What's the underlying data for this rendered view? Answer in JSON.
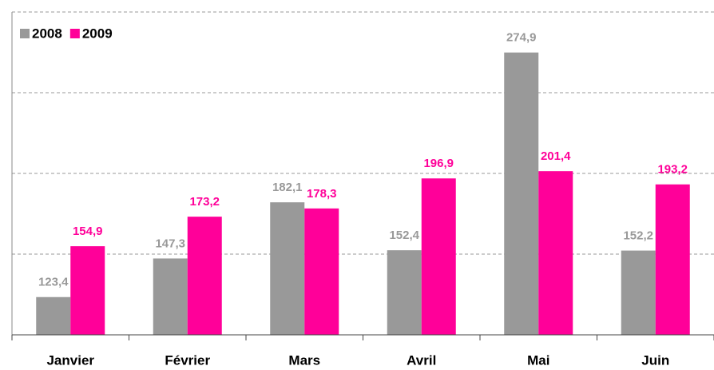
{
  "chart_data": {
    "type": "bar",
    "categories": [
      "Janvier",
      "Février",
      "Mars",
      "Avril",
      "Mai",
      "Juin"
    ],
    "series": [
      {
        "name": "2008",
        "color": "#999999",
        "values": [
          123.4,
          147.3,
          182.1,
          152.4,
          274.9,
          152.2
        ],
        "value_labels": [
          "123,4",
          "147,3",
          "182,1",
          "152,4",
          "274,9",
          "152,2"
        ]
      },
      {
        "name": "2009",
        "color": "#ff0099",
        "values": [
          154.9,
          173.2,
          178.3,
          196.9,
          201.4,
          193.2
        ],
        "value_labels": [
          "154,9",
          "173,2",
          "178,3",
          "196,9",
          "201,4",
          "193,2"
        ]
      }
    ],
    "ylim": [
      100,
      300
    ],
    "yticks": [
      100,
      150,
      200,
      250,
      300
    ],
    "grid": true,
    "legend": "top-left"
  }
}
